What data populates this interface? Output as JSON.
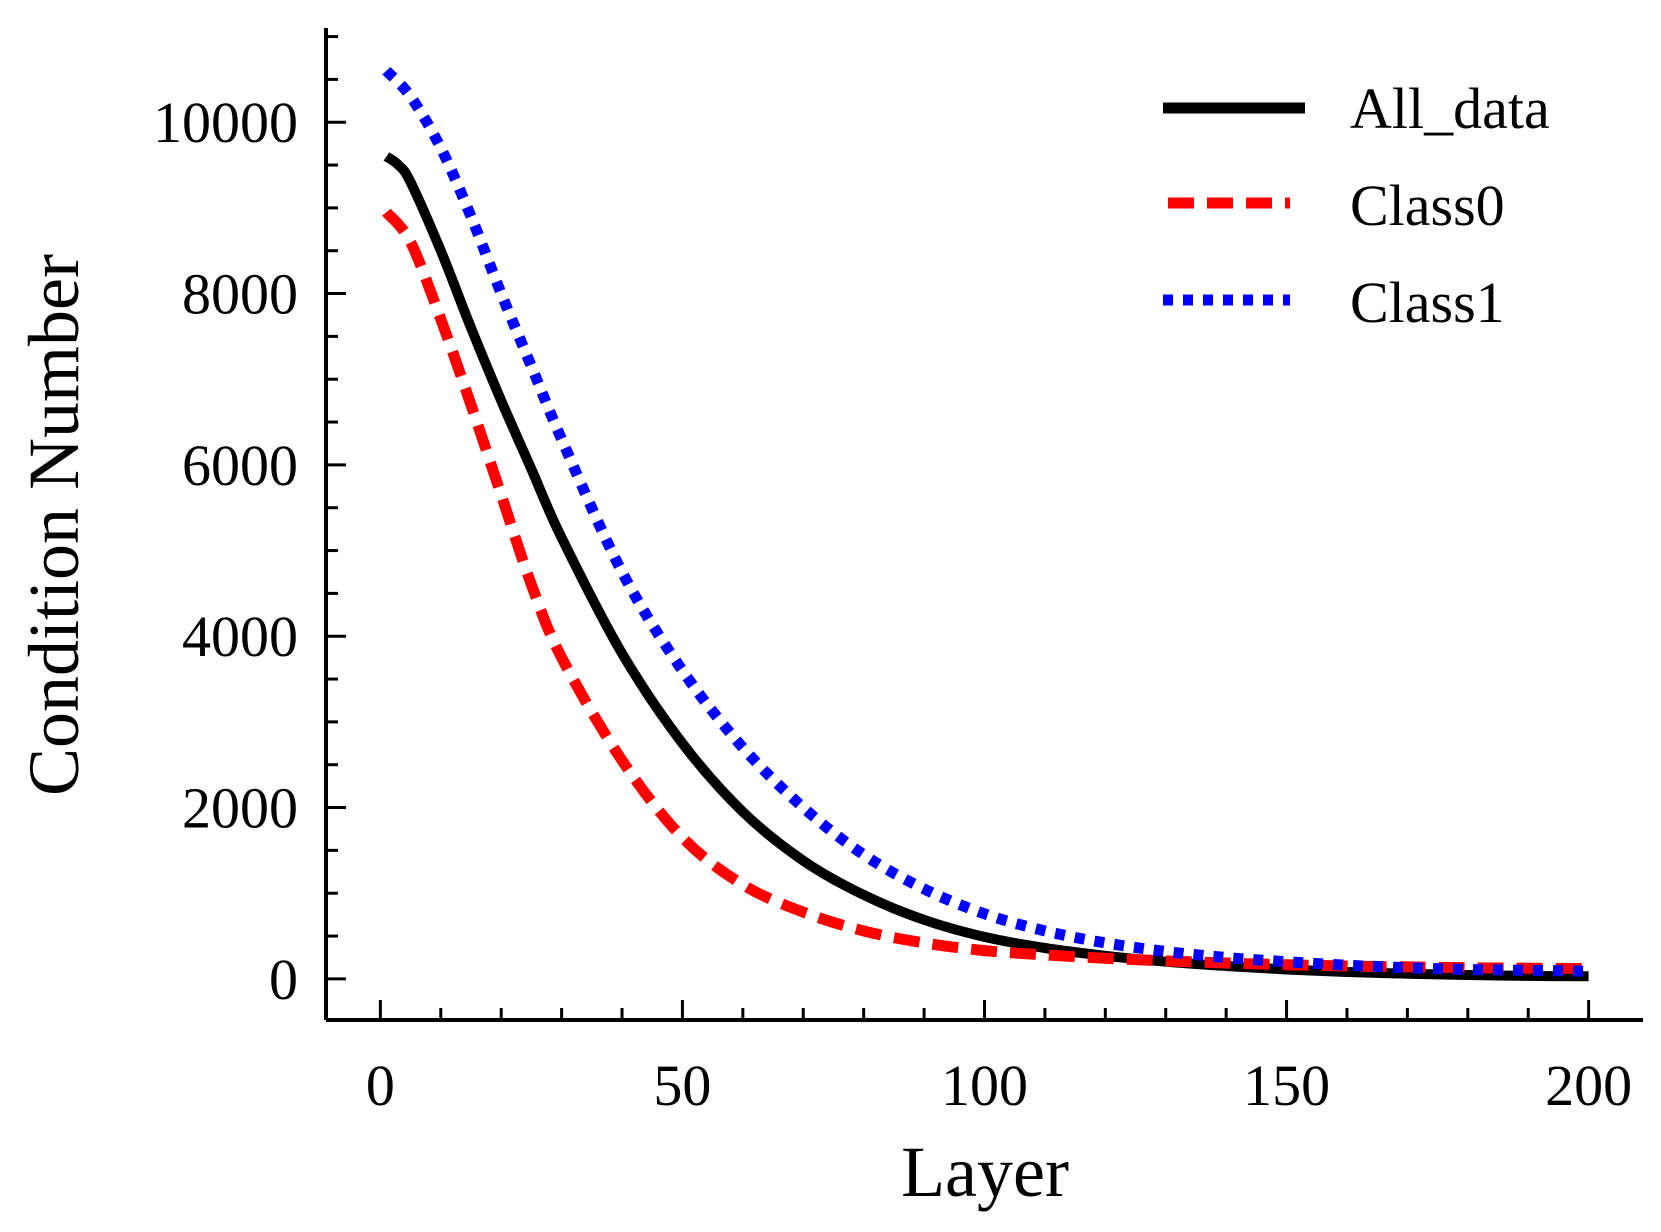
{
  "chart_data": {
    "type": "line",
    "xlabel": "Layer",
    "ylabel": "Condition Number",
    "xlim": [
      -9,
      209
    ],
    "ylim": [
      -480,
      11100
    ],
    "xticks": [
      0,
      50,
      100,
      150,
      200
    ],
    "yticks": [
      0,
      2000,
      4000,
      6000,
      8000,
      10000
    ],
    "x_minor_step": 10,
    "y_minor_step": 500,
    "grid": false,
    "legend_position": "top-right",
    "series": [
      {
        "name": "All_data",
        "color": "#000000",
        "style": "solid",
        "x": [
          1,
          3,
          5,
          10,
          15,
          20,
          25,
          30,
          40,
          50,
          60,
          70,
          80,
          90,
          100,
          110,
          120,
          130,
          140,
          150,
          160,
          170,
          180,
          190,
          200
        ],
        "y": [
          9600,
          9500,
          9300,
          8500,
          7600,
          6750,
          5950,
          5150,
          3800,
          2750,
          1950,
          1380,
          980,
          690,
          490,
          360,
          270,
          200,
          150,
          110,
          80,
          60,
          45,
          35,
          30
        ]
      },
      {
        "name": "Class0",
        "color": "#ff0000",
        "style": "dashed",
        "x": [
          1,
          5,
          10,
          15,
          20,
          25,
          30,
          40,
          50,
          60,
          70,
          80,
          90,
          100,
          110,
          120,
          130,
          140,
          150,
          160,
          170,
          180,
          190,
          200
        ],
        "y": [
          8950,
          8600,
          7700,
          6700,
          5650,
          4600,
          3750,
          2550,
          1650,
          1100,
          780,
          560,
          420,
          330,
          280,
          240,
          210,
          185,
          165,
          150,
          140,
          130,
          125,
          120
        ]
      },
      {
        "name": "Class1",
        "color": "#0000ff",
        "style": "dotted",
        "x": [
          1,
          5,
          10,
          15,
          20,
          25,
          30,
          40,
          50,
          60,
          70,
          80,
          90,
          100,
          110,
          120,
          130,
          140,
          150,
          160,
          170,
          180,
          190,
          200
        ],
        "y": [
          10600,
          10300,
          9700,
          8900,
          8000,
          7150,
          6300,
          4750,
          3600,
          2700,
          2000,
          1450,
          1050,
          760,
          560,
          420,
          320,
          250,
          200,
          160,
          130,
          110,
          100,
          90
        ]
      }
    ]
  }
}
